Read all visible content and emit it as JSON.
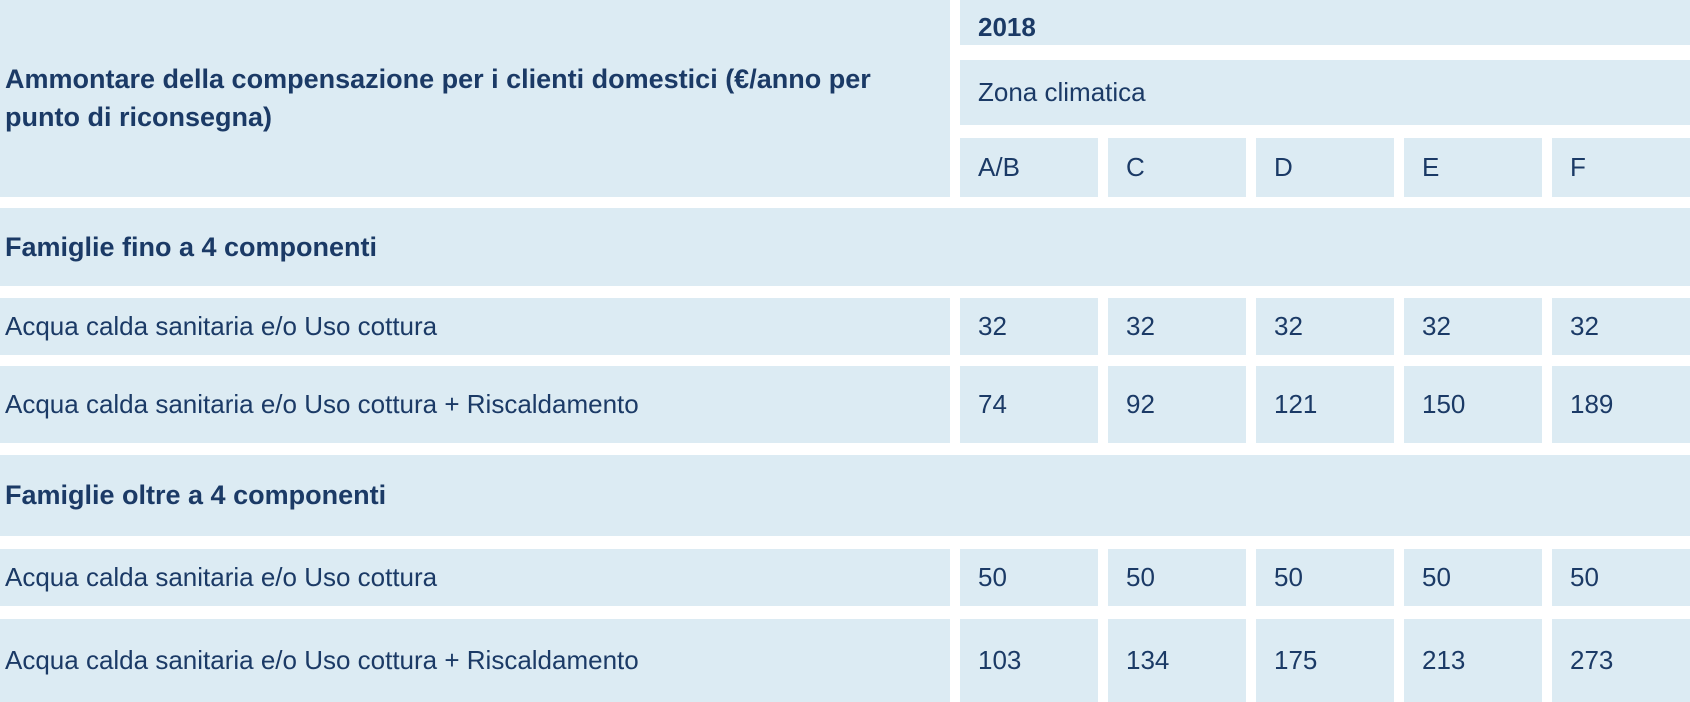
{
  "table": {
    "title": "Ammontare della compensazione per i clienti domestici (€/anno per punto di riconsegna)",
    "year_header": "2018",
    "zone_group_header": "Zona climatica",
    "zone_columns": [
      "A/B",
      "C",
      "D",
      "E",
      "F"
    ],
    "sections": [
      {
        "label": "Famiglie fino a 4 componenti",
        "rows": [
          {
            "label": "Acqua calda sanitaria e/o Uso cottura",
            "values": [
              "32",
              "32",
              "32",
              "32",
              "32"
            ]
          },
          {
            "label": "Acqua calda sanitaria e/o Uso cottura + Riscaldamento",
            "values": [
              "74",
              "92",
              "121",
              "150",
              "189"
            ]
          }
        ]
      },
      {
        "label": "Famiglie oltre a 4 componenti",
        "rows": [
          {
            "label": "Acqua calda sanitaria e/o Uso cottura",
            "values": [
              "50",
              "50",
              "50",
              "50",
              "50"
            ]
          },
          {
            "label": "Acqua calda sanitaria e/o Uso cottura + Riscaldamento",
            "values": [
              "103",
              "134",
              "175",
              "213",
              "273"
            ]
          }
        ]
      }
    ],
    "colors": {
      "cell_background": "#dcebf3",
      "text": "#1b3a66",
      "gutter": "#ffffff"
    }
  }
}
